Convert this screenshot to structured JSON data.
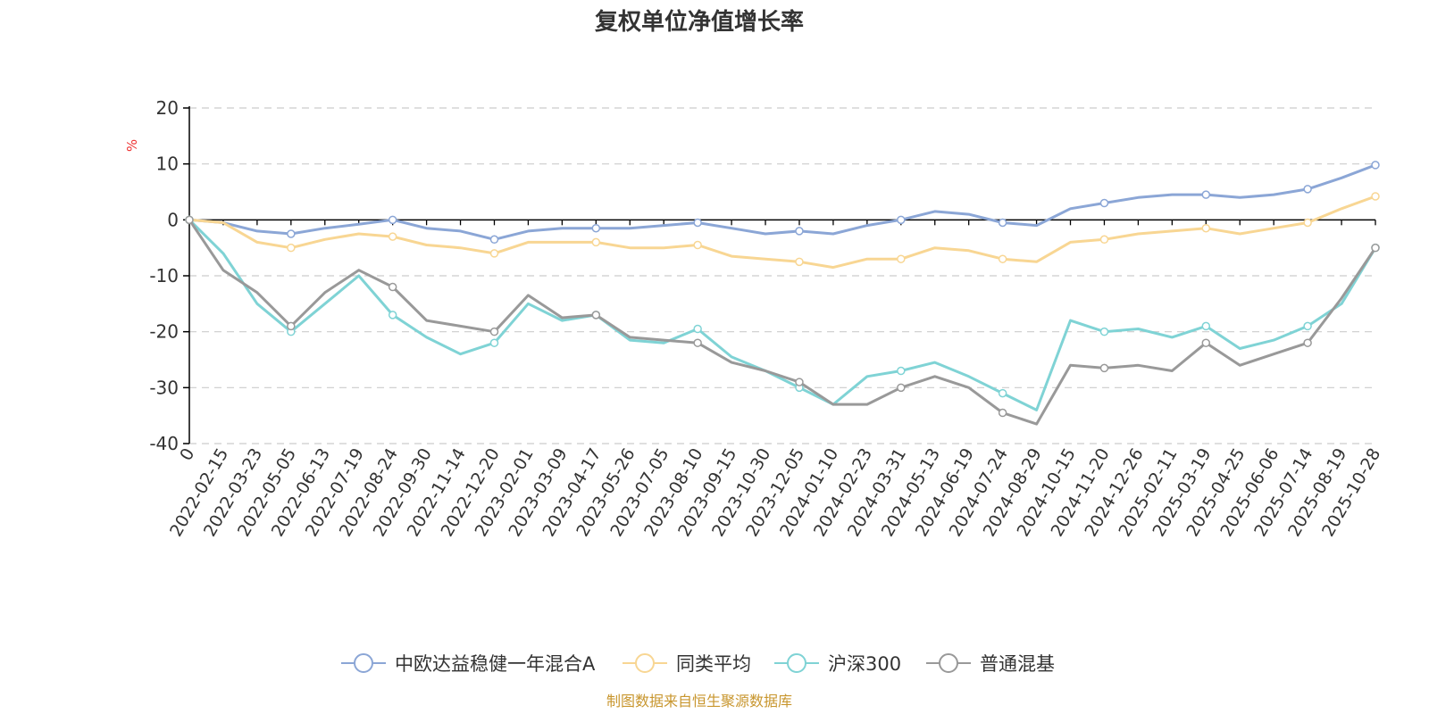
{
  "colors": {
    "fund": "#8ba6d6",
    "peer": "#f8d693",
    "csi300": "#7fd3d5",
    "mixed": "#999999",
    "unit": "#ee3333",
    "source": "#c8962e",
    "grid": "#cccccc",
    "axis": "#000000"
  },
  "chart_data": {
    "type": "line",
    "title": "复权单位净值增长率",
    "ylabel": "%",
    "ylim": [
      -40,
      20
    ],
    "yticks": [
      "20",
      "10",
      "0",
      "-10",
      "-20",
      "-30",
      "-40"
    ],
    "grid": true,
    "legend_position": "bottom",
    "x": [
      "0",
      "2022-02-15",
      "2022-03-23",
      "2022-05-05",
      "2022-06-13",
      "2022-07-19",
      "2022-08-24",
      "2022-09-30",
      "2022-11-14",
      "2022-12-20",
      "2023-02-01",
      "2023-03-09",
      "2023-04-17",
      "2023-05-26",
      "2023-07-05",
      "2023-08-10",
      "2023-09-15",
      "2023-10-30",
      "2023-12-05",
      "2024-01-10",
      "2024-02-23",
      "2024-03-31",
      "2024-05-13",
      "2024-06-19",
      "2024-07-24",
      "2024-08-29",
      "2024-10-15",
      "2024-11-20",
      "2024-12-26",
      "2025-02-11",
      "2025-03-19",
      "2025-04-25",
      "2025-06-06",
      "2025-07-14",
      "2025-08-19",
      "2025-10-28"
    ],
    "series": [
      {
        "name": "中欧达益稳健一年混合A",
        "color_key": "fund",
        "values": [
          0,
          -0.5,
          -2,
          -2.5,
          -1.5,
          -0.8,
          0,
          -1.5,
          -2,
          -3.5,
          -2,
          -1.5,
          -1.5,
          -1.5,
          -1,
          -0.5,
          -1.5,
          -2.5,
          -2,
          -2.5,
          -1,
          0,
          1.5,
          1,
          -0.5,
          -1,
          2,
          3,
          4,
          4.5,
          4.5,
          4,
          4.5,
          5.5,
          7.5,
          9.8
        ]
      },
      {
        "name": "同类平均",
        "color_key": "peer",
        "values": [
          0,
          -0.5,
          -4,
          -5,
          -3.5,
          -2.5,
          -3,
          -4.5,
          -5,
          -6,
          -4,
          -4,
          -4,
          -5,
          -5,
          -4.5,
          -6.5,
          -7,
          -7.5,
          -8.5,
          -7,
          -7,
          -5,
          -5.5,
          -7,
          -7.5,
          -4,
          -3.5,
          -2.5,
          -2,
          -1.5,
          -2.5,
          -1.5,
          -0.5,
          2,
          4.2
        ]
      },
      {
        "name": "沪深300",
        "color_key": "csi300",
        "values": [
          0,
          -6,
          -15,
          -20,
          -15,
          -10,
          -17,
          -21,
          -24,
          -22,
          -15,
          -18,
          -17,
          -21.5,
          -22,
          -19.5,
          -24.5,
          -27,
          -30,
          -33,
          -28,
          -27,
          -25.5,
          -28,
          -31,
          -34,
          -18,
          -20,
          -19.5,
          -21,
          -19,
          -23,
          -21.5,
          -19,
          -15,
          -5
        ]
      },
      {
        "name": "普通混基",
        "color_key": "mixed",
        "values": [
          0,
          -9,
          -13,
          -19,
          -13,
          -9,
          -12,
          -18,
          -19,
          -20,
          -13.5,
          -17.5,
          -17,
          -21,
          -21.5,
          -22,
          -25.5,
          -27,
          -29,
          -33,
          -33,
          -30,
          -28,
          -30,
          -34.5,
          -36.5,
          -26,
          -26.5,
          -26,
          -27,
          -22,
          -26,
          -24,
          -22,
          -14,
          -5
        ]
      }
    ],
    "source": "制图数据来自恒生聚源数据库"
  }
}
